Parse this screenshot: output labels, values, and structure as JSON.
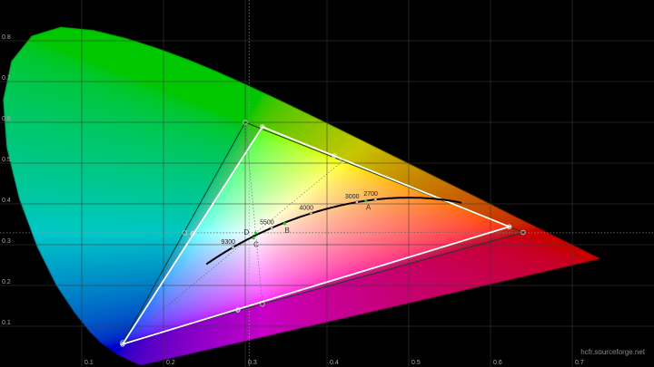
{
  "chart_data": {
    "type": "scatter",
    "title": "",
    "xlabel": "",
    "ylabel": "",
    "xlim": [
      0,
      0.8
    ],
    "ylim": [
      0,
      0.9
    ],
    "grid": true,
    "x_ticks": [
      "0.1",
      "0.2",
      "0.3",
      "0.4",
      "0.5",
      "0.6",
      "0.7"
    ],
    "y_ticks": [
      "0.1",
      "0.2",
      "0.3",
      "0.4",
      "0.5",
      "0.6",
      "0.7",
      "0.8"
    ],
    "spectral_locus": [
      [
        0.1741,
        0.005
      ],
      [
        0.1726,
        0.0048
      ],
      [
        0.1714,
        0.0051
      ],
      [
        0.1689,
        0.0069
      ],
      [
        0.1644,
        0.0109
      ],
      [
        0.1566,
        0.0177
      ],
      [
        0.144,
        0.0297
      ],
      [
        0.1241,
        0.0578
      ],
      [
        0.1096,
        0.0868
      ],
      [
        0.0913,
        0.1327
      ],
      [
        0.0687,
        0.2007
      ],
      [
        0.0454,
        0.295
      ],
      [
        0.0235,
        0.4127
      ],
      [
        0.0082,
        0.5384
      ],
      [
        0.0039,
        0.6548
      ],
      [
        0.0139,
        0.7502
      ],
      [
        0.0389,
        0.812
      ],
      [
        0.0743,
        0.8338
      ],
      [
        0.1142,
        0.8262
      ],
      [
        0.1547,
        0.8059
      ],
      [
        0.1929,
        0.7816
      ],
      [
        0.2296,
        0.7543
      ],
      [
        0.2658,
        0.7243
      ],
      [
        0.3016,
        0.6923
      ],
      [
        0.3373,
        0.6589
      ],
      [
        0.3731,
        0.6245
      ],
      [
        0.4087,
        0.5896
      ],
      [
        0.4441,
        0.5547
      ],
      [
        0.4788,
        0.5202
      ],
      [
        0.5125,
        0.4866
      ],
      [
        0.5448,
        0.4544
      ],
      [
        0.5752,
        0.4242
      ],
      [
        0.6029,
        0.3965
      ],
      [
        0.627,
        0.3725
      ],
      [
        0.6658,
        0.334
      ],
      [
        0.6915,
        0.3083
      ],
      [
        0.7079,
        0.292
      ],
      [
        0.719,
        0.2809
      ],
      [
        0.7347,
        0.2653
      ]
    ],
    "reference_gamut": {
      "primaries": [
        [
          0.64,
          0.33
        ],
        [
          0.3,
          0.6
        ],
        [
          0.15,
          0.06
        ]
      ],
      "secondaries": [
        [
          0.226,
          0.329
        ],
        [
          0.321,
          0.154
        ],
        [
          0.419,
          0.505
        ]
      ],
      "color": "#1a3a2a"
    },
    "measured_gamut": {
      "primaries": [
        [
          0.623,
          0.344
        ],
        [
          0.321,
          0.589
        ],
        [
          0.15,
          0.056
        ]
      ],
      "secondaries": [
        [
          0.236,
          0.327
        ],
        [
          0.291,
          0.14
        ],
        [
          0.409,
          0.518
        ]
      ],
      "color": "#ffffff"
    },
    "white_point": [
      0.3127,
      0.329
    ],
    "planckian_locus": {
      "t_min": 1667,
      "t_max": 25000,
      "color": "#000000"
    },
    "cct_labels": [
      {
        "label": "9300",
        "T": 9300
      },
      {
        "label": "5500",
        "T": 5500
      },
      {
        "label": "4000",
        "T": 4000
      },
      {
        "label": "3000",
        "T": 3000
      },
      {
        "label": "2700",
        "T": 2700
      }
    ],
    "illuminants": [
      {
        "label": "A",
        "x": 0.4476,
        "y": 0.4074
      },
      {
        "label": "B",
        "x": 0.3484,
        "y": 0.3516
      },
      {
        "label": "C",
        "x": 0.3101,
        "y": 0.3162
      },
      {
        "label": "D",
        "x": 0.3127,
        "y": 0.329
      }
    ]
  },
  "watermark": "hcfr.sourceforge.net"
}
